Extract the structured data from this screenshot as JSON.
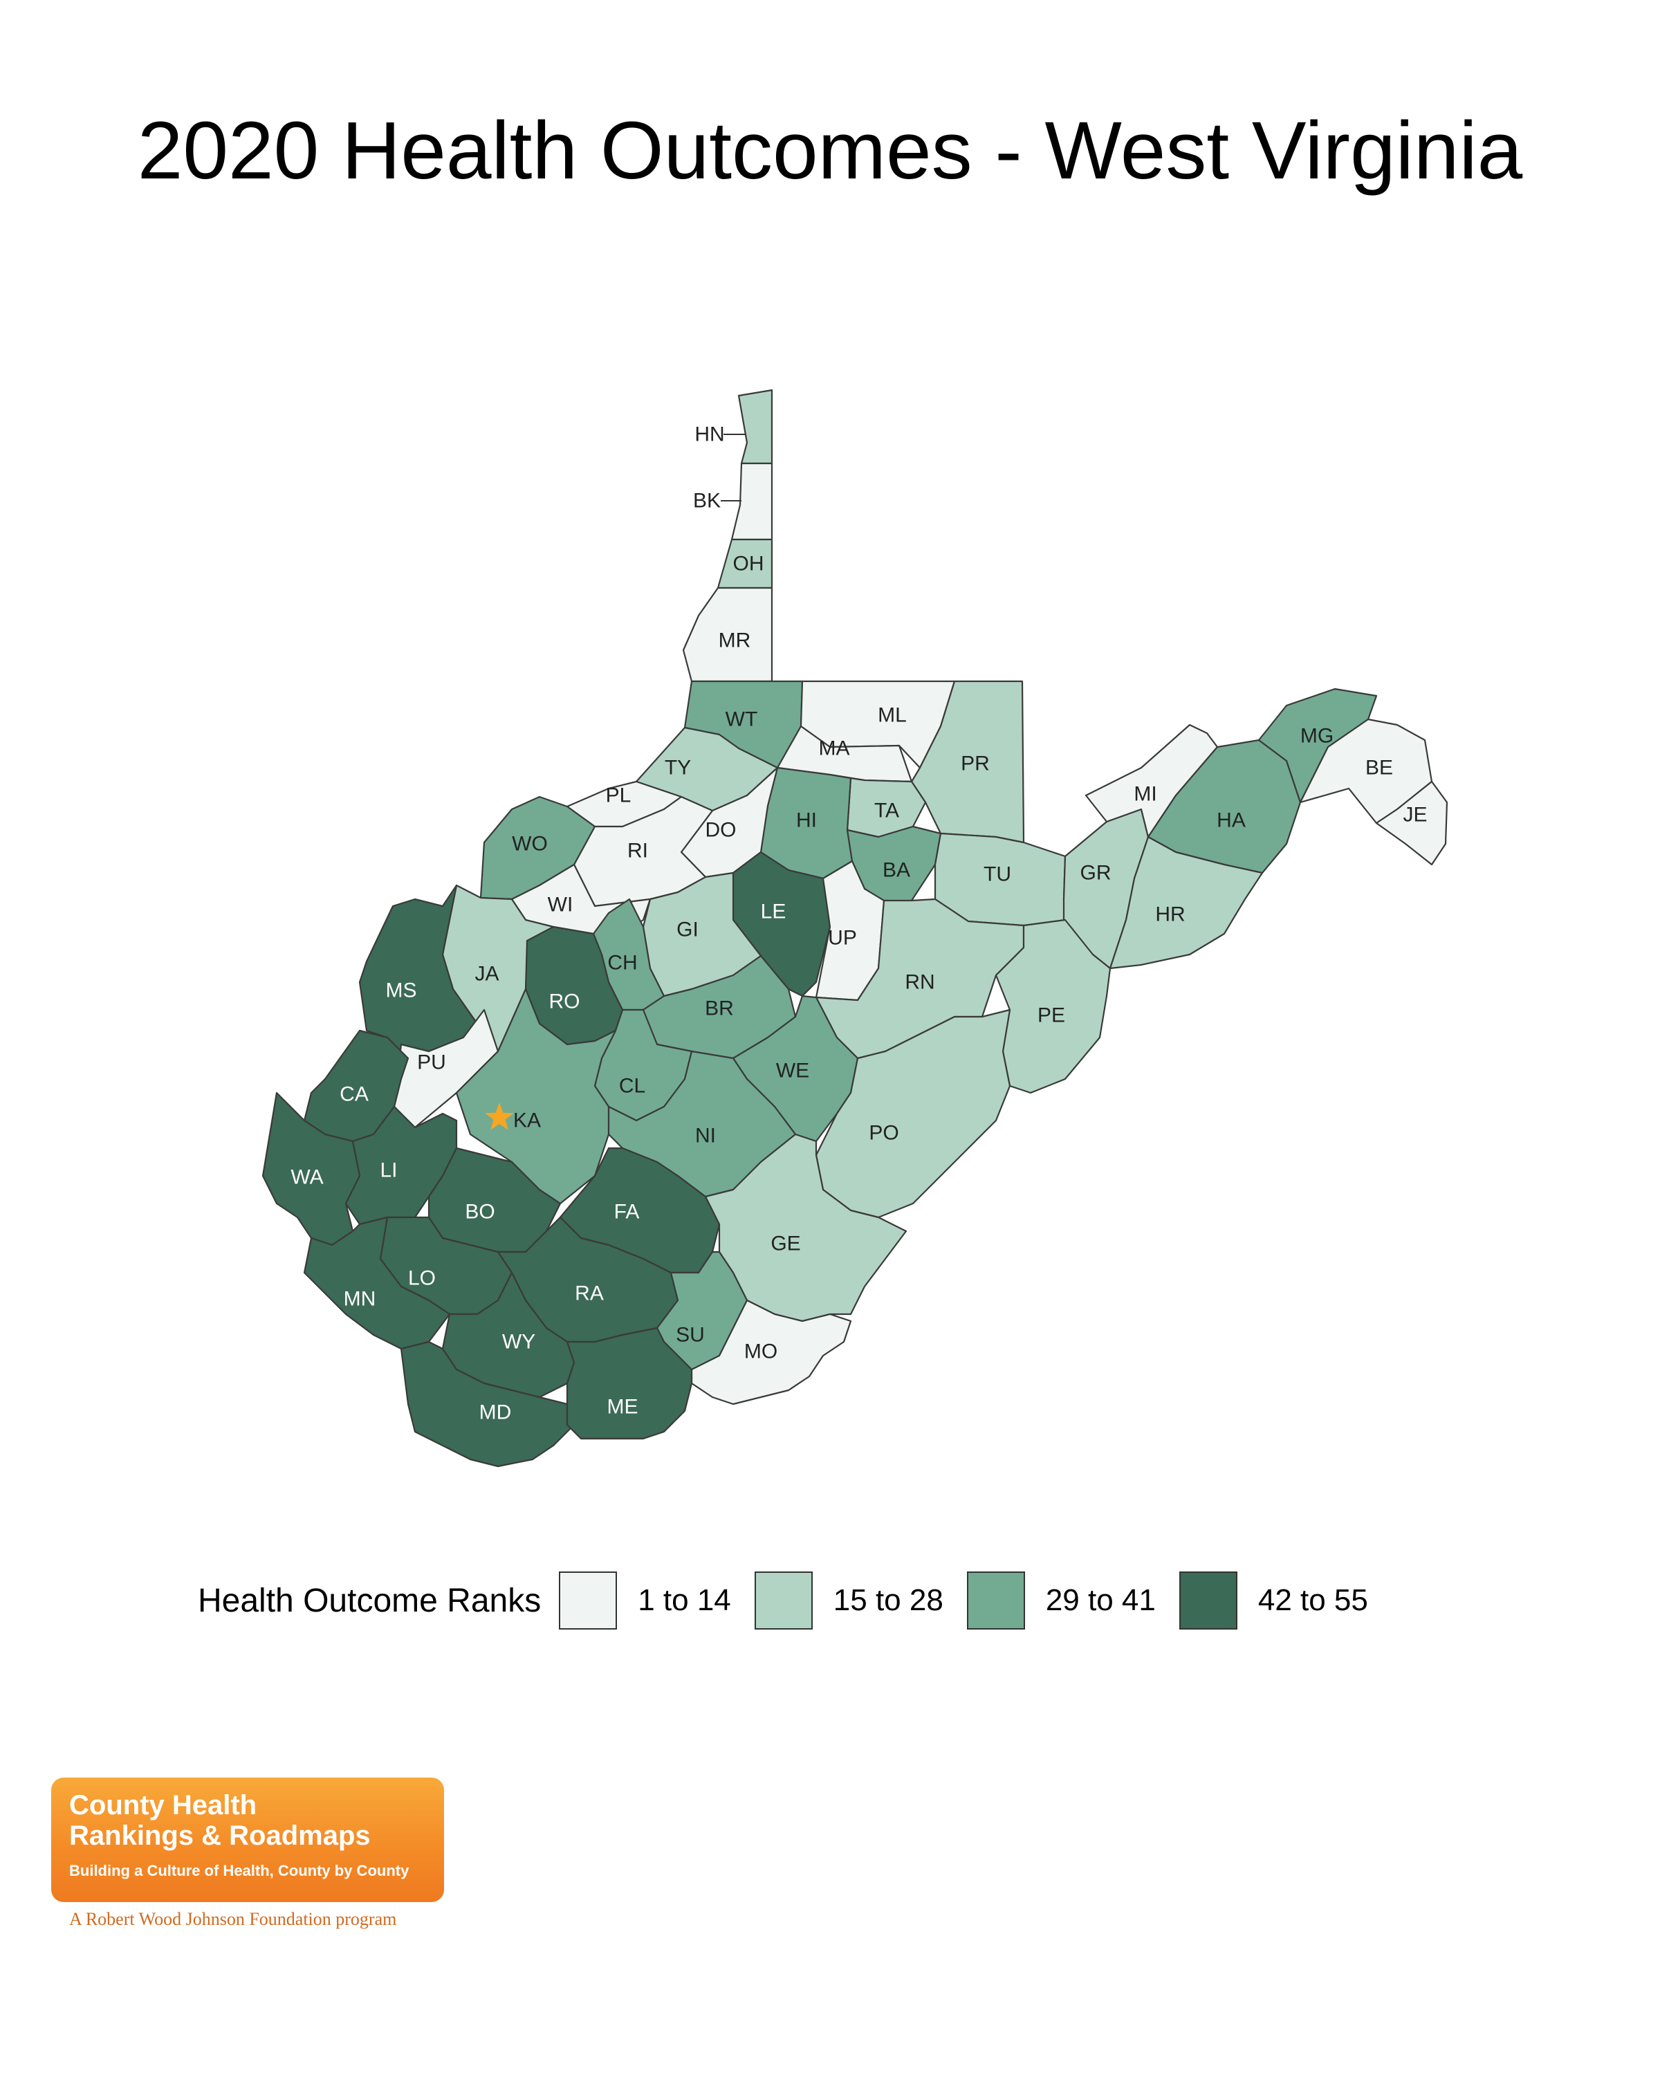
{
  "title": "2020 Health Outcomes - West Virginia",
  "legend": {
    "title": "Health Outcome Ranks",
    "bins": [
      {
        "label": "1 to 14",
        "color": "#f0f5f3"
      },
      {
        "label": "15 to 28",
        "color": "#b2d4c5"
      },
      {
        "label": "29 to 41",
        "color": "#72ab92"
      },
      {
        "label": "42 to 55",
        "color": "#3b6a56"
      }
    ]
  },
  "counties": [
    {
      "abbr": "HN",
      "bin": 1
    },
    {
      "abbr": "BK",
      "bin": 0
    },
    {
      "abbr": "OH",
      "bin": 1
    },
    {
      "abbr": "MR",
      "bin": 0
    },
    {
      "abbr": "WT",
      "bin": 2
    },
    {
      "abbr": "ML",
      "bin": 0
    },
    {
      "abbr": "MA",
      "bin": 0
    },
    {
      "abbr": "PR",
      "bin": 1
    },
    {
      "abbr": "TY",
      "bin": 1
    },
    {
      "abbr": "PL",
      "bin": 0
    },
    {
      "abbr": "TA",
      "bin": 1
    },
    {
      "abbr": "HI",
      "bin": 2
    },
    {
      "abbr": "DO",
      "bin": 0
    },
    {
      "abbr": "RI",
      "bin": 0
    },
    {
      "abbr": "WO",
      "bin": 2
    },
    {
      "abbr": "BA",
      "bin": 2
    },
    {
      "abbr": "TU",
      "bin": 1
    },
    {
      "abbr": "GR",
      "bin": 1
    },
    {
      "abbr": "MI",
      "bin": 0
    },
    {
      "abbr": "HA",
      "bin": 2
    },
    {
      "abbr": "MG",
      "bin": 2
    },
    {
      "abbr": "BE",
      "bin": 0
    },
    {
      "abbr": "JE",
      "bin": 0
    },
    {
      "abbr": "HR",
      "bin": 1
    },
    {
      "abbr": "WI",
      "bin": 0
    },
    {
      "abbr": "LE",
      "bin": 3
    },
    {
      "abbr": "UP",
      "bin": 0
    },
    {
      "abbr": "GI",
      "bin": 1
    },
    {
      "abbr": "CH",
      "bin": 2
    },
    {
      "abbr": "JA",
      "bin": 1
    },
    {
      "abbr": "MS",
      "bin": 3
    },
    {
      "abbr": "RO",
      "bin": 3
    },
    {
      "abbr": "RN",
      "bin": 1
    },
    {
      "abbr": "BR",
      "bin": 2
    },
    {
      "abbr": "PE",
      "bin": 1
    },
    {
      "abbr": "PU",
      "bin": 0
    },
    {
      "abbr": "WE",
      "bin": 2
    },
    {
      "abbr": "CA",
      "bin": 3
    },
    {
      "abbr": "CL",
      "bin": 2
    },
    {
      "abbr": "KA",
      "bin": 2
    },
    {
      "abbr": "NI",
      "bin": 2
    },
    {
      "abbr": "PO",
      "bin": 1
    },
    {
      "abbr": "WA",
      "bin": 3
    },
    {
      "abbr": "LI",
      "bin": 3
    },
    {
      "abbr": "BO",
      "bin": 3
    },
    {
      "abbr": "FA",
      "bin": 3
    },
    {
      "abbr": "GE",
      "bin": 1
    },
    {
      "abbr": "LO",
      "bin": 3
    },
    {
      "abbr": "MN",
      "bin": 3
    },
    {
      "abbr": "RA",
      "bin": 3
    },
    {
      "abbr": "SU",
      "bin": 2
    },
    {
      "abbr": "WY",
      "bin": 3
    },
    {
      "abbr": "MO",
      "bin": 0
    },
    {
      "abbr": "MD",
      "bin": 3
    },
    {
      "abbr": "ME",
      "bin": 3
    }
  ],
  "capital": {
    "county": "KA",
    "color": "#f5a623"
  },
  "logo": {
    "line1": "County Health",
    "line2": "Rankings & Roadmaps",
    "tagline": "Building a Culture of Health, County by County",
    "foundation": "A Robert Wood Johnson Foundation program"
  }
}
